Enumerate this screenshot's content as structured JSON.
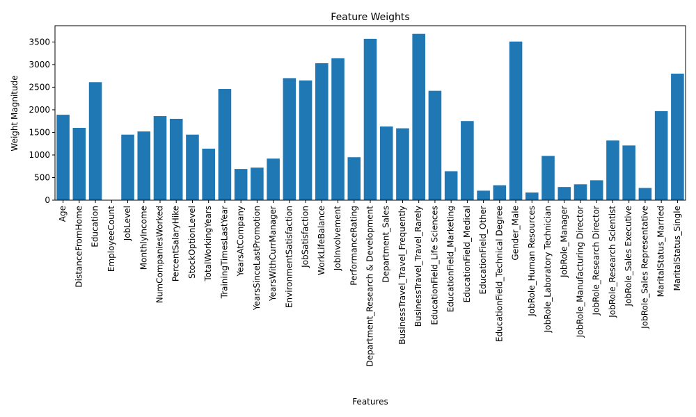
{
  "chart_data": {
    "type": "bar",
    "title": "Feature Weights",
    "xlabel": "Features",
    "ylabel": "Weight Magnitude",
    "ylim": [
      0,
      3860
    ],
    "yticks": [
      0,
      500,
      1000,
      1500,
      2000,
      2500,
      3000,
      3500
    ],
    "grid": false,
    "bar_color": "#1f77b4",
    "categories": [
      "Age",
      "DistanceFromHome",
      "Education",
      "EmployeeCount",
      "JobLevel",
      "MonthlyIncome",
      "NumCompaniesWorked",
      "PercentSalaryHike",
      "StockOptionLevel",
      "TotalWorkingYears",
      "TrainingTimesLastYear",
      "YearsAtCompany",
      "YearsSinceLastPromotion",
      "YearsWithCurrManager",
      "EnvironmentSatisfaction",
      "JobSatisfaction",
      "WorkLifeBalance",
      "JobInvolvement",
      "PerformanceRating",
      "Department_Research & Development",
      "Department_Sales",
      "BusinessTravel_Travel_Frequently",
      "BusinessTravel_Travel_Rarely",
      "EducationField_Life Sciences",
      "EducationField_Marketing",
      "EducationField_Medical",
      "EducationField_Other",
      "EducationField_Technical Degree",
      "Gender_Male",
      "JobRole_Human Resources",
      "JobRole_Laboratory Technician",
      "JobRole_Manager",
      "JobRole_Manufacturing Director",
      "JobRole_Research Director",
      "JobRole_Research Scientist",
      "JobRole_Sales Executive",
      "JobRole_Sales Representative",
      "MaritalStatus_Married",
      "MaritalStatus_Single"
    ],
    "values": [
      1890,
      1600,
      2610,
      0,
      1450,
      1520,
      1860,
      1800,
      1450,
      1140,
      2460,
      690,
      720,
      920,
      2700,
      2650,
      3030,
      3140,
      950,
      3570,
      1630,
      1590,
      3680,
      2420,
      640,
      1750,
      210,
      330,
      3510,
      170,
      980,
      290,
      350,
      440,
      1320,
      1210,
      270,
      1970,
      2800
    ]
  }
}
